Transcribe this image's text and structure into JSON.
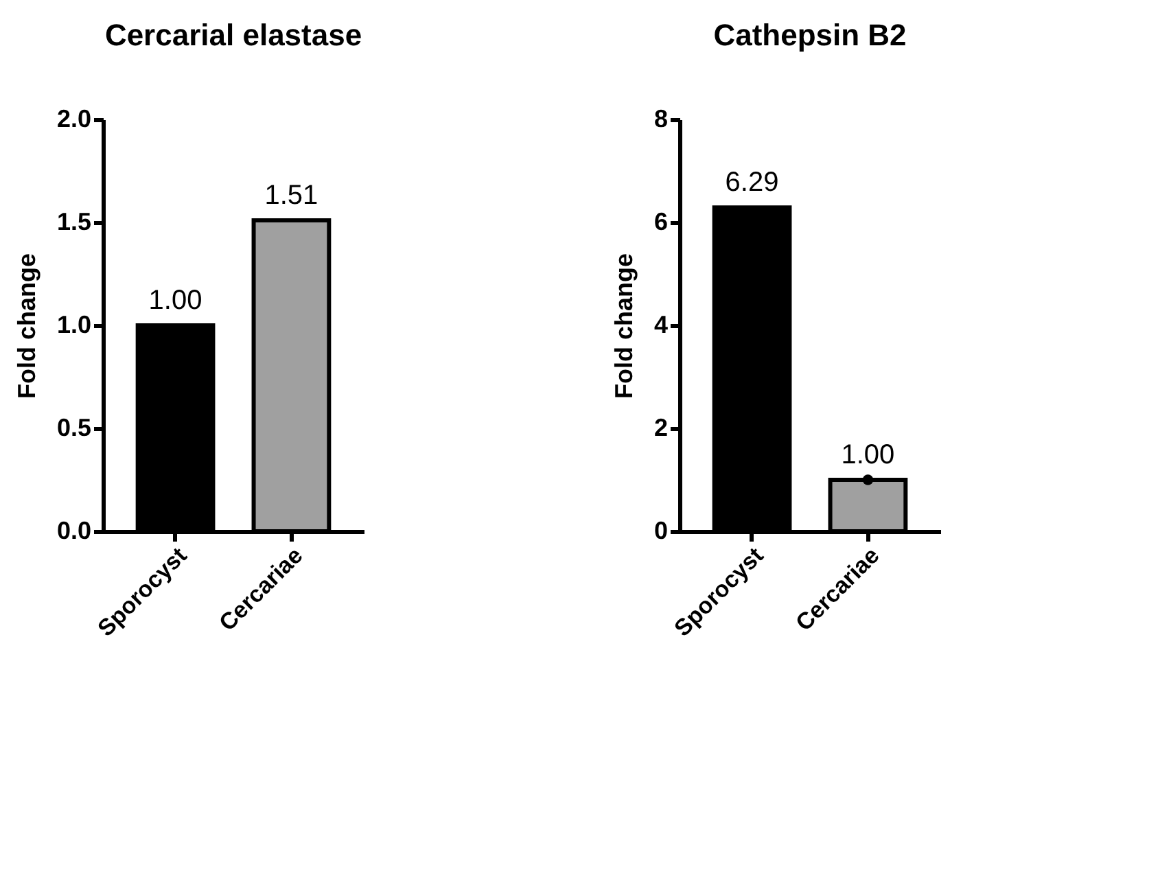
{
  "chart_data": [
    {
      "type": "bar",
      "title": "Cercarial elastase",
      "ylabel": "Fold change",
      "categories": [
        "Sporocyst",
        "Cercariae"
      ],
      "ylim": [
        0,
        2
      ],
      "yticks": [
        {
          "value": 0,
          "label": "0.0"
        },
        {
          "value": 0.5,
          "label": "0.5"
        },
        {
          "value": 1,
          "label": "1.0"
        },
        {
          "value": 1.5,
          "label": "1.5"
        },
        {
          "value": 2,
          "label": "2.0"
        }
      ],
      "grid": false,
      "series": [
        {
          "values": [
            1.0,
            1.51
          ],
          "colors": [
            "#000000",
            "#a0a0a0"
          ],
          "value_labels": [
            "1.00",
            "1.51"
          ]
        }
      ]
    },
    {
      "type": "bar",
      "title": "Cathepsin B2",
      "ylabel": "Fold change",
      "categories": [
        "Sporocyst",
        "Cercariae"
      ],
      "ylim": [
        0,
        8
      ],
      "yticks": [
        0,
        2,
        4,
        6,
        8
      ],
      "grid": false,
      "series": [
        {
          "values": [
            6.29,
            1.0
          ],
          "colors": [
            "#000000",
            "#a0a0a0"
          ],
          "value_labels": [
            "6.29",
            "1.00"
          ]
        },
        {
          "type": "scatter",
          "x": [
            "Cercariae"
          ],
          "values": [
            1.0
          ],
          "color": "#000000",
          "marker": "circle"
        }
      ]
    }
  ]
}
